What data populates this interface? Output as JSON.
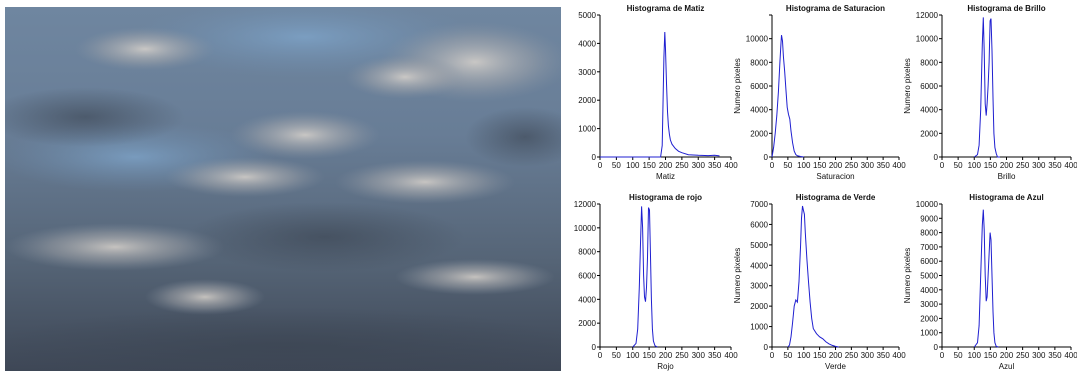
{
  "photo": {
    "subject": "overcast sky with grey-blue clouds"
  },
  "colors": {
    "series": "#1f1fd0",
    "axis": "#000000"
  },
  "chart_data": [
    {
      "type": "line",
      "title": "Histograma de Matiz",
      "xlabel": "Matiz",
      "ylabel": "",
      "xlim": [
        0,
        400
      ],
      "ylim": [
        0,
        5000
      ],
      "xticks": [
        0,
        50,
        100,
        150,
        200,
        250,
        300,
        350,
        400
      ],
      "yticks": [
        0,
        1000,
        2000,
        3000,
        4000,
        5000
      ],
      "ytick_labels": [
        "0",
        "1000",
        "2000",
        "3000",
        "4000",
        "5000"
      ],
      "x": [
        0,
        185,
        190,
        195,
        198,
        200,
        203,
        206,
        209,
        212,
        215,
        220,
        230,
        240,
        250,
        270,
        300,
        330,
        350,
        365
      ],
      "y": [
        0,
        0,
        400,
        3500,
        4400,
        3800,
        2600,
        1600,
        1100,
        800,
        600,
        450,
        300,
        200,
        150,
        80,
        60,
        50,
        60,
        40
      ]
    },
    {
      "type": "line",
      "title": "Histograma de Saturacion",
      "xlabel": "Saturacion",
      "ylabel": "Numero pixeles",
      "xlim": [
        0,
        400
      ],
      "ylim": [
        0,
        12000
      ],
      "xticks": [
        0,
        50,
        100,
        150,
        200,
        250,
        300,
        350,
        400
      ],
      "yticks": [
        0,
        2000,
        4000,
        6000,
        8000,
        10000,
        12000
      ],
      "ytick_labels": [
        "0",
        "2000",
        "4000",
        "6000",
        "8000",
        "10000",
        ""
      ],
      "x": [
        0,
        5,
        10,
        15,
        20,
        25,
        28,
        30,
        33,
        36,
        40,
        44,
        48,
        52,
        56,
        60,
        65,
        70,
        75,
        80,
        90,
        100
      ],
      "y": [
        0,
        800,
        2000,
        3500,
        5500,
        8000,
        9500,
        10300,
        9800,
        8500,
        7200,
        5600,
        4200,
        3600,
        3200,
        2200,
        1200,
        500,
        200,
        100,
        40,
        0
      ]
    },
    {
      "type": "line",
      "title": "Histograma de Brillo",
      "xlabel": "Brillo",
      "ylabel": "Numero pixeles",
      "xlim": [
        0,
        400
      ],
      "ylim": [
        0,
        12000
      ],
      "xticks": [
        0,
        50,
        100,
        150,
        200,
        250,
        300,
        350,
        400
      ],
      "yticks": [
        0,
        2000,
        4000,
        6000,
        8000,
        10000,
        12000
      ],
      "ytick_labels": [
        "0",
        "2000",
        "4000",
        "6000",
        "8000",
        "10000",
        "12000"
      ],
      "x": [
        100,
        110,
        115,
        120,
        125,
        128,
        131,
        134,
        137,
        140,
        143,
        146,
        149,
        152,
        155,
        158,
        161,
        164,
        168,
        172,
        180
      ],
      "y": [
        0,
        200,
        1000,
        4000,
        9500,
        11800,
        9000,
        4500,
        3500,
        4500,
        6000,
        8000,
        11500,
        11700,
        9000,
        5000,
        2000,
        800,
        300,
        0,
        0
      ]
    },
    {
      "type": "line",
      "title": "Histograma de rojo",
      "xlabel": "Rojo",
      "ylabel": "",
      "xlim": [
        0,
        400
      ],
      "ylim": [
        0,
        12000
      ],
      "xticks": [
        0,
        50,
        100,
        150,
        200,
        250,
        300,
        350,
        400
      ],
      "yticks": [
        0,
        2000,
        4000,
        6000,
        8000,
        10000,
        12000
      ],
      "ytick_labels": [
        "0",
        "2000",
        "4000",
        "6000",
        "8000",
        "10000",
        "12000"
      ],
      "x": [
        100,
        110,
        115,
        120,
        124,
        127,
        130,
        133,
        136,
        139,
        142,
        145,
        148,
        151,
        154,
        157,
        160,
        163,
        168,
        175
      ],
      "y": [
        0,
        300,
        1500,
        5000,
        9000,
        11800,
        10000,
        6000,
        4200,
        3800,
        5000,
        7500,
        11700,
        11500,
        8000,
        4000,
        1500,
        500,
        100,
        0
      ]
    },
    {
      "type": "line",
      "title": "Histograma de Verde",
      "xlabel": "Verde",
      "ylabel": "Numero pixeles",
      "xlim": [
        0,
        400
      ],
      "ylim": [
        0,
        7000
      ],
      "xticks": [
        0,
        50,
        100,
        150,
        200,
        250,
        300,
        350,
        400
      ],
      "yticks": [
        0,
        1000,
        2000,
        3000,
        4000,
        5000,
        6000,
        7000
      ],
      "ytick_labels": [
        "0",
        "1000",
        "2000",
        "3000",
        "4000",
        "5000",
        "6000",
        "7000"
      ],
      "x": [
        50,
        55,
        60,
        65,
        70,
        75,
        80,
        85,
        90,
        93,
        96,
        99,
        102,
        105,
        110,
        115,
        120,
        125,
        130,
        140,
        150,
        160,
        170,
        180,
        190,
        200,
        210
      ],
      "y": [
        0,
        100,
        500,
        1200,
        2000,
        2300,
        2200,
        3200,
        5000,
        6300,
        6900,
        6700,
        6500,
        5600,
        4300,
        3200,
        2200,
        1400,
        900,
        650,
        500,
        400,
        250,
        150,
        80,
        30,
        0
      ]
    },
    {
      "type": "line",
      "title": "Histograma de Azul",
      "xlabel": "Azul",
      "ylabel": "Numero pixeles",
      "xlim": [
        0,
        400
      ],
      "ylim": [
        0,
        10000
      ],
      "xticks": [
        0,
        50,
        100,
        150,
        200,
        250,
        300,
        350,
        400
      ],
      "yticks": [
        0,
        1000,
        2000,
        3000,
        4000,
        5000,
        6000,
        7000,
        8000,
        9000,
        10000
      ],
      "ytick_labels": [
        "0",
        "1000",
        "2000",
        "3000",
        "4000",
        "5000",
        "6000",
        "7000",
        "8000",
        "9000",
        "10000"
      ],
      "x": [
        100,
        110,
        115,
        120,
        125,
        128,
        131,
        134,
        137,
        140,
        143,
        146,
        149,
        152,
        155,
        158,
        161,
        164,
        168,
        175
      ],
      "y": [
        0,
        300,
        1500,
        5000,
        8500,
        9600,
        8200,
        5000,
        3200,
        3500,
        5000,
        6500,
        8000,
        7500,
        5000,
        2500,
        1000,
        300,
        50,
        0
      ]
    }
  ]
}
